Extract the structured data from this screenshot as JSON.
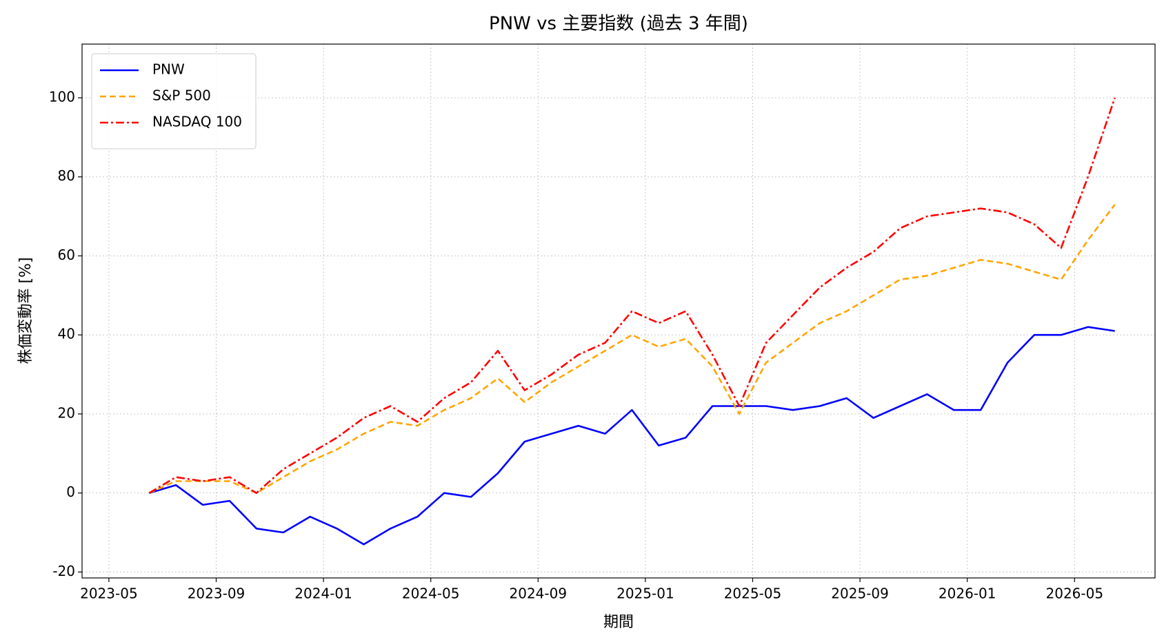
{
  "chart_data": {
    "type": "line",
    "title": "PNW vs 主要指数 (過去 3 年間)",
    "x_label": "期間",
    "y_label": "株価変動率 [%]",
    "x": [
      "2023-06",
      "2023-07",
      "2023-08",
      "2023-09",
      "2023-10",
      "2023-11",
      "2023-12",
      "2024-01",
      "2024-02",
      "2024-03",
      "2024-04",
      "2024-05",
      "2024-06",
      "2024-07",
      "2024-08",
      "2024-09",
      "2024-10",
      "2024-11",
      "2024-12",
      "2025-01",
      "2025-02",
      "2025-03",
      "2025-04",
      "2025-05",
      "2025-06",
      "2025-07",
      "2025-08",
      "2025-09",
      "2025-10",
      "2025-11",
      "2025-12",
      "2026-01",
      "2026-02",
      "2026-03",
      "2026-04",
      "2026-05",
      "2026-06"
    ],
    "series": [
      {
        "name": "PNW",
        "color": "#0000ff",
        "linestyle": "solid",
        "values": [
          0,
          2,
          -3,
          -2,
          -9,
          -10,
          -6,
          -9,
          -13,
          -9,
          -6,
          0,
          -1,
          5,
          13,
          15,
          17,
          15,
          21,
          12,
          14,
          22,
          22,
          22,
          21,
          22,
          24,
          19,
          22,
          25,
          21,
          21,
          33,
          40,
          40,
          42,
          41
        ]
      },
      {
        "name": "S&P 500",
        "color": "#ffa500",
        "linestyle": "dashed",
        "values": [
          0,
          3,
          3,
          3,
          0,
          4,
          8,
          11,
          15,
          18,
          17,
          21,
          24,
          29,
          23,
          28,
          32,
          36,
          40,
          37,
          39,
          32,
          20,
          33,
          38,
          43,
          46,
          50,
          54,
          55,
          57,
          59,
          58,
          56,
          54,
          64,
          73
        ]
      },
      {
        "name": "NASDAQ 100",
        "color": "#ff0000",
        "linestyle": "dashdot",
        "values": [
          0,
          4,
          3,
          4,
          0,
          6,
          10,
          14,
          19,
          22,
          18,
          24,
          28,
          36,
          26,
          30,
          35,
          38,
          46,
          43,
          46,
          35,
          22,
          38,
          45,
          52,
          57,
          61,
          67,
          70,
          71,
          72,
          71,
          68,
          62,
          80,
          100
        ]
      }
    ],
    "xlim": [
      "2023-04",
      "2026-08"
    ],
    "xticks": [
      "2023-05",
      "2023-09",
      "2024-01",
      "2024-05",
      "2024-09",
      "2025-01",
      "2025-05",
      "2025-09",
      "2026-01",
      "2026-05"
    ],
    "ylim": [
      -21.5,
      113.6
    ],
    "yticks": [
      -20,
      0,
      20,
      40,
      60,
      80,
      100
    ],
    "grid": true,
    "legend": "upper left"
  }
}
